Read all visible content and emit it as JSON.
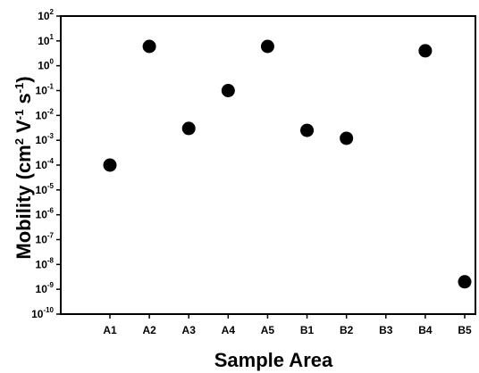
{
  "chart_data": {
    "type": "scatter",
    "title": "",
    "xlabel": "Sample Area",
    "ylabel": {
      "text_before": "Mobility (cm",
      "sup1": "2",
      "text_mid": " V",
      "sup2": "-1",
      "text_mid2": " s",
      "sup3": "-1",
      "text_after": ")"
    },
    "y_scale": "log",
    "ylim": [
      1e-10,
      100
    ],
    "y_ticks": [
      {
        "exp": "2",
        "value": 100
      },
      {
        "exp": "1",
        "value": 10
      },
      {
        "exp": "0",
        "value": 1
      },
      {
        "exp": "-1",
        "value": 0.1
      },
      {
        "exp": "-2",
        "value": 0.01
      },
      {
        "exp": "-3",
        "value": 0.001
      },
      {
        "exp": "-4",
        "value": 0.0001
      },
      {
        "exp": "-5",
        "value": 1e-05
      },
      {
        "exp": "-6",
        "value": 1e-06
      },
      {
        "exp": "-7",
        "value": 1e-07
      },
      {
        "exp": "-8",
        "value": 1e-08
      },
      {
        "exp": "-9",
        "value": 1e-09
      },
      {
        "exp": "-10",
        "value": 1e-10
      }
    ],
    "y_tick_base": "10",
    "categories": [
      "A1",
      "A2",
      "A3",
      "A4",
      "A5",
      "B1",
      "B2",
      "B3",
      "B4",
      "B5"
    ],
    "values": [
      0.0001,
      6,
      0.003,
      0.1,
      6,
      0.0025,
      0.0012,
      null,
      4,
      2e-09
    ],
    "marker_color": "#000000",
    "grid": false,
    "legend": "none"
  }
}
